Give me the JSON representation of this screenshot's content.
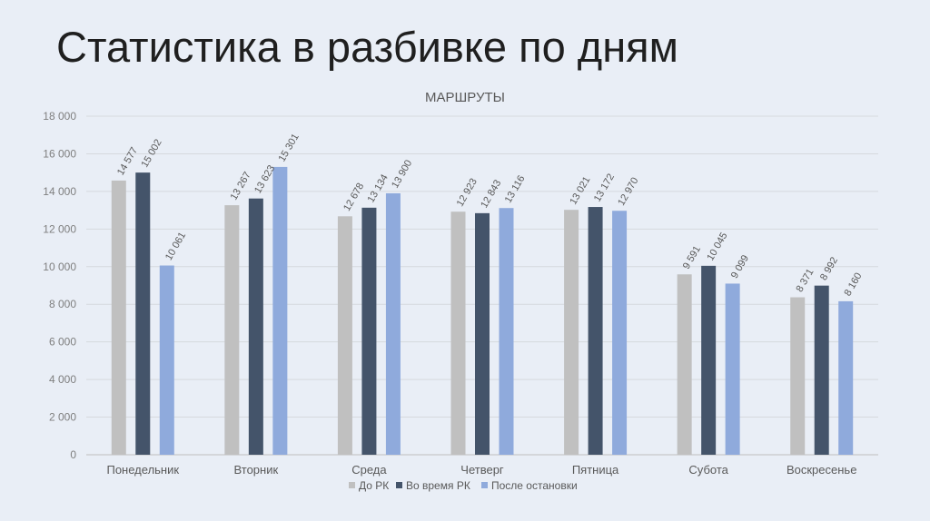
{
  "slide": {
    "title": "Статистика в разбивке по дням"
  },
  "chart_data": {
    "type": "bar",
    "title": "МАРШРУТЫ",
    "xlabel": "",
    "ylabel": "",
    "ylim": [
      0,
      18000
    ],
    "yticks": [
      0,
      2000,
      4000,
      6000,
      8000,
      10000,
      12000,
      14000,
      16000,
      18000
    ],
    "ytick_labels": [
      "0",
      "2 000",
      "4 000",
      "6 000",
      "8 000",
      "10 000",
      "12 000",
      "14 000",
      "16 000",
      "18 000"
    ],
    "grid": true,
    "legend": "bottom",
    "categories": [
      "Понедельник",
      "Вторник",
      "Среда",
      "Четверг",
      "Пятница",
      "Субота",
      "Воскресенье"
    ],
    "series": [
      {
        "name": "До РК",
        "color": "#c0c0c0",
        "values": [
          14577,
          13267,
          12678,
          12923,
          13021,
          9591,
          8371
        ],
        "labels": [
          "14 577",
          "13 267",
          "12 678",
          "12 923",
          "13 021",
          "9 591",
          "8 371"
        ]
      },
      {
        "name": "Во время РК",
        "color": "#44546a",
        "values": [
          15002,
          13623,
          13134,
          12843,
          13172,
          10045,
          8992
        ],
        "labels": [
          "15 002",
          "13 623",
          "13 134",
          "12 843",
          "13 172",
          "10 045",
          "8 992"
        ]
      },
      {
        "name": "После остановки",
        "color": "#8faadc",
        "values": [
          10061,
          15301,
          13900,
          13116,
          12970,
          9099,
          8160
        ],
        "labels": [
          "10 061",
          "15 301",
          "13 900",
          "13 116",
          "12 970",
          "9 099",
          "8 160"
        ]
      }
    ]
  }
}
